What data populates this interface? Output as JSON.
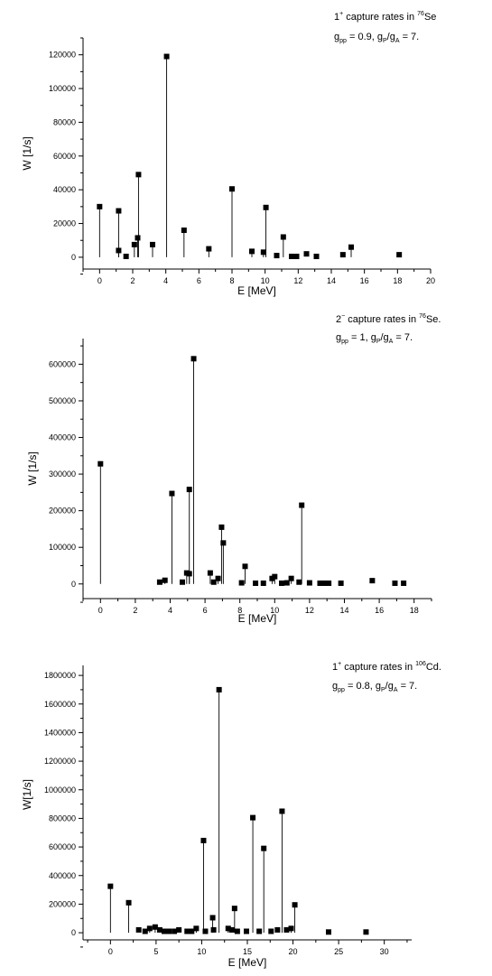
{
  "chart_data": [
    {
      "type": "scatter",
      "style": "stem plot with square markers",
      "annotation": {
        "line1": {
          "prefix": "1",
          "sup": "+",
          "mid": " capture rates in ",
          "sup2": "76",
          "suffix": "Se"
        },
        "line2": {
          "g": "g",
          "pp": "pp",
          "eq1": " = 0.9, g",
          "P": "P",
          "slash": "/g",
          "A": "A",
          "eq2": " = 7."
        }
      },
      "xlabel": "E [MeV]",
      "ylabel": "W [1/s]",
      "xlim": [
        -1,
        20
      ],
      "ylim": [
        -7000,
        130000
      ],
      "xticks": [
        0,
        2,
        4,
        6,
        8,
        10,
        12,
        14,
        16,
        18,
        20
      ],
      "yticks": [
        0,
        20000,
        40000,
        60000,
        80000,
        100000,
        120000
      ],
      "points": [
        {
          "x": 0.0,
          "y": 30000
        },
        {
          "x": 1.15,
          "y": 27500
        },
        {
          "x": 1.15,
          "y": 4000
        },
        {
          "x": 1.6,
          "y": 500
        },
        {
          "x": 2.1,
          "y": 7500
        },
        {
          "x": 2.3,
          "y": 11500
        },
        {
          "x": 2.35,
          "y": 49000
        },
        {
          "x": 3.2,
          "y": 7500
        },
        {
          "x": 4.05,
          "y": 119000
        },
        {
          "x": 5.1,
          "y": 16000
        },
        {
          "x": 6.6,
          "y": 5000
        },
        {
          "x": 8.0,
          "y": 40500
        },
        {
          "x": 9.2,
          "y": 3500
        },
        {
          "x": 9.9,
          "y": 3000
        },
        {
          "x": 10.05,
          "y": 29500
        },
        {
          "x": 10.7,
          "y": 1000
        },
        {
          "x": 11.1,
          "y": 12000
        },
        {
          "x": 11.6,
          "y": 500
        },
        {
          "x": 11.9,
          "y": 500
        },
        {
          "x": 12.5,
          "y": 2000
        },
        {
          "x": 13.1,
          "y": 500
        },
        {
          "x": 14.7,
          "y": 1500
        },
        {
          "x": 15.2,
          "y": 6000
        },
        {
          "x": 18.1,
          "y": 1500
        }
      ]
    },
    {
      "type": "scatter",
      "style": "stem plot with square markers",
      "annotation": {
        "line1": {
          "prefix": "2",
          "sup": "−",
          "mid": " capture rates in ",
          "sup2": "76",
          "suffix": "Se."
        },
        "line2": {
          "g": "g",
          "pp": "pp",
          "eq1": " = 1, g",
          "P": "P",
          "slash": "/g",
          "A": "A",
          "eq2": " = 7."
        }
      },
      "xlabel": "E [MeV]",
      "ylabel": "W [1/s]",
      "xlim": [
        -1,
        19
      ],
      "ylim": [
        -40000,
        670000
      ],
      "xticks": [
        0,
        2,
        4,
        6,
        8,
        10,
        12,
        14,
        16,
        18
      ],
      "yticks": [
        0,
        100000,
        200000,
        300000,
        400000,
        500000,
        600000
      ],
      "points": [
        {
          "x": 0.0,
          "y": 328000
        },
        {
          "x": 3.4,
          "y": 5000
        },
        {
          "x": 3.7,
          "y": 10000
        },
        {
          "x": 4.1,
          "y": 247000
        },
        {
          "x": 4.7,
          "y": 5000
        },
        {
          "x": 4.95,
          "y": 30000
        },
        {
          "x": 5.1,
          "y": 28000
        },
        {
          "x": 5.1,
          "y": 258000
        },
        {
          "x": 5.35,
          "y": 615000
        },
        {
          "x": 6.3,
          "y": 30000
        },
        {
          "x": 6.5,
          "y": 5000
        },
        {
          "x": 6.75,
          "y": 15000
        },
        {
          "x": 6.95,
          "y": 155000
        },
        {
          "x": 7.05,
          "y": 112000
        },
        {
          "x": 8.1,
          "y": 3000
        },
        {
          "x": 8.3,
          "y": 48000
        },
        {
          "x": 8.9,
          "y": 2000
        },
        {
          "x": 9.35,
          "y": 2000
        },
        {
          "x": 9.85,
          "y": 15000
        },
        {
          "x": 10.0,
          "y": 20000
        },
        {
          "x": 10.4,
          "y": 2000
        },
        {
          "x": 10.7,
          "y": 3000
        },
        {
          "x": 10.95,
          "y": 15000
        },
        {
          "x": 11.4,
          "y": 5000
        },
        {
          "x": 11.55,
          "y": 215000
        },
        {
          "x": 12.0,
          "y": 3000
        },
        {
          "x": 12.6,
          "y": 2000
        },
        {
          "x": 12.85,
          "y": 2000
        },
        {
          "x": 13.1,
          "y": 2000
        },
        {
          "x": 13.8,
          "y": 2000
        },
        {
          "x": 15.6,
          "y": 9000
        },
        {
          "x": 16.9,
          "y": 2000
        },
        {
          "x": 17.4,
          "y": 2000
        }
      ]
    },
    {
      "type": "scatter",
      "style": "stem plot with square markers",
      "annotation": {
        "line1": {
          "prefix": "1",
          "sup": "+",
          "mid": " capture rates in ",
          "sup2": "106",
          "suffix": "Cd."
        },
        "line2": {
          "g": "g",
          "pp": "pp",
          "eq1": " = 0.8, g",
          "P": "P",
          "slash": "/g",
          "A": "A",
          "eq2": " = 7."
        }
      },
      "xlabel": "E [MeV]",
      "ylabel": "W[1/s]",
      "xlim": [
        -3,
        33
      ],
      "ylim": [
        -50000,
        1870000
      ],
      "xticks": [
        0,
        5,
        10,
        15,
        20,
        25,
        30
      ],
      "yticks": [
        0,
        200000,
        400000,
        600000,
        800000,
        1000000,
        1200000,
        1400000,
        1600000,
        1800000
      ],
      "points": [
        {
          "x": 0.0,
          "y": 325000
        },
        {
          "x": 2.0,
          "y": 210000
        },
        {
          "x": 3.1,
          "y": 20000
        },
        {
          "x": 3.8,
          "y": 10000
        },
        {
          "x": 4.3,
          "y": 30000
        },
        {
          "x": 4.9,
          "y": 40000
        },
        {
          "x": 5.4,
          "y": 20000
        },
        {
          "x": 5.9,
          "y": 10000
        },
        {
          "x": 6.4,
          "y": 10000
        },
        {
          "x": 7.0,
          "y": 10000
        },
        {
          "x": 7.5,
          "y": 20000
        },
        {
          "x": 8.4,
          "y": 10000
        },
        {
          "x": 8.9,
          "y": 10000
        },
        {
          "x": 9.4,
          "y": 30000
        },
        {
          "x": 10.2,
          "y": 645000
        },
        {
          "x": 10.4,
          "y": 10000
        },
        {
          "x": 11.2,
          "y": 105000
        },
        {
          "x": 11.3,
          "y": 20000
        },
        {
          "x": 11.9,
          "y": 1700000
        },
        {
          "x": 12.9,
          "y": 30000
        },
        {
          "x": 13.3,
          "y": 20000
        },
        {
          "x": 13.6,
          "y": 170000
        },
        {
          "x": 13.9,
          "y": 10000
        },
        {
          "x": 14.9,
          "y": 10000
        },
        {
          "x": 15.6,
          "y": 805000
        },
        {
          "x": 16.3,
          "y": 10000
        },
        {
          "x": 16.8,
          "y": 590000
        },
        {
          "x": 17.6,
          "y": 10000
        },
        {
          "x": 18.3,
          "y": 20000
        },
        {
          "x": 18.8,
          "y": 850000
        },
        {
          "x": 19.3,
          "y": 20000
        },
        {
          "x": 19.8,
          "y": 30000
        },
        {
          "x": 20.2,
          "y": 195000
        },
        {
          "x": 23.9,
          "y": 5000
        },
        {
          "x": 28.0,
          "y": 5000
        }
      ]
    }
  ]
}
